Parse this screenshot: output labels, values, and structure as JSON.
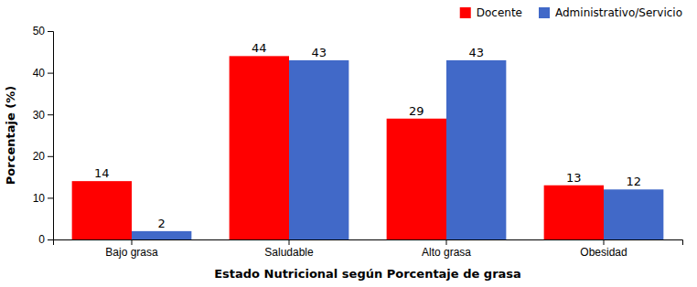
{
  "chart_data": {
    "type": "bar",
    "xlabel": "Estado Nutricional según Porcentaje de grasa",
    "ylabel": "Porcentaje (%)",
    "categories": [
      "Bajo grasa",
      "Saludable",
      "Alto grasa",
      "Obesidad"
    ],
    "series": [
      {
        "name": "Docente",
        "color": "#FF0000",
        "values": [
          14,
          44,
          29,
          13
        ]
      },
      {
        "name": "Administrativo/Servicio",
        "color": "#4169C8",
        "values": [
          2,
          43,
          43,
          12
        ]
      }
    ],
    "ylim": [
      0,
      50
    ],
    "yticks": [
      0,
      10,
      20,
      30,
      40,
      50
    ],
    "grid": false,
    "legend": "upper right",
    "data_labels": true
  }
}
